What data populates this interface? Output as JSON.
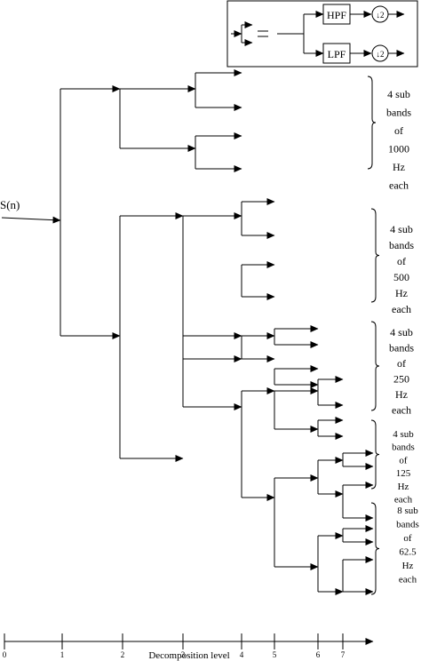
{
  "legend": {
    "hpf_label": "HPF",
    "lpf_label": "LPF",
    "downsample_symbol": "↓2"
  },
  "input_label": "S(n)",
  "band_groups": [
    {
      "lines": [
        "4 sub",
        "bands",
        "of",
        "1000",
        "Hz",
        "each"
      ]
    },
    {
      "lines": [
        "4 sub",
        "bands",
        "of",
        "500",
        "Hz",
        "each"
      ]
    },
    {
      "lines": [
        "4 sub",
        "bands",
        "of",
        "250",
        "Hz",
        "each"
      ]
    },
    {
      "lines": [
        "4 sub",
        "bands",
        "of",
        "125",
        "Hz",
        "each"
      ]
    },
    {
      "lines": [
        "8 sub",
        "bands",
        "of",
        "62.5",
        "Hz",
        "each"
      ]
    }
  ],
  "axis": {
    "ticks": [
      "0",
      "1",
      "2",
      "3",
      "4",
      "5",
      "6",
      "7"
    ],
    "label": "Decomposition level"
  }
}
